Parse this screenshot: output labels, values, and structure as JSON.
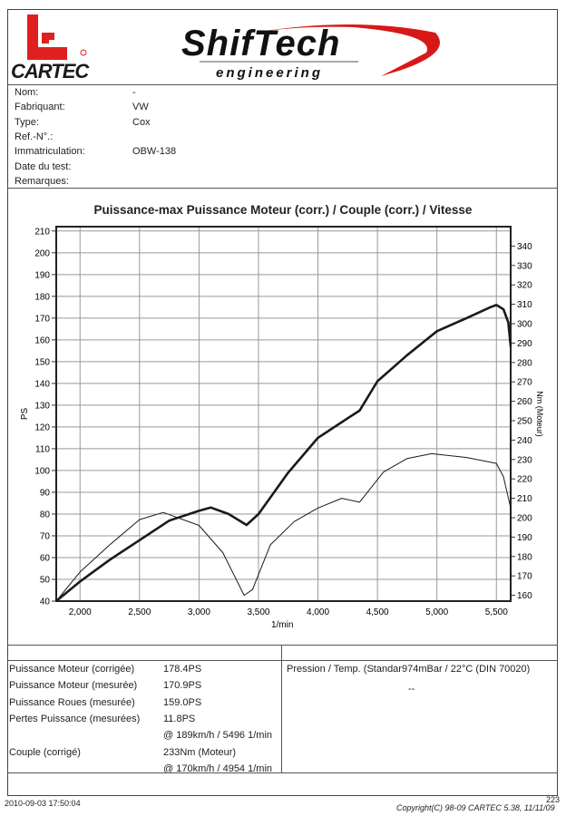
{
  "logos": {
    "cartec": "CARTEC",
    "shiftech": "ShifTech",
    "shiftech_sub": "engineering"
  },
  "info": [
    {
      "label": "Nom:",
      "value": "-"
    },
    {
      "label": "Fabriquant:",
      "value": "VW"
    },
    {
      "label": "Type:",
      "value": "Cox"
    },
    {
      "label": "Ref.-N°.:",
      "value": ""
    },
    {
      "label": "Immatriculation:",
      "value": "OBW-138"
    },
    {
      "label": "Date du test:",
      "value": ""
    },
    {
      "label": "Remarques:",
      "value": ""
    }
  ],
  "results": [
    {
      "label": "Puissance Moteur (corrigée)",
      "value": "178.4PS"
    },
    {
      "label": "Puissance Moteur (mesurée)",
      "value": "170.9PS"
    },
    {
      "label": "Puissance Roues (mesurée)",
      "value": "159.0PS"
    },
    {
      "label": "Pertes Puissance (mesurées)",
      "value": "11.8PS"
    },
    {
      "label": "",
      "value": "@ 189km/h / 5496 1/min"
    },
    {
      "label": "Couple (corrigé)",
      "value": "233Nm (Moteur)"
    },
    {
      "label": "",
      "value": "@ 170km/h / 4954 1/min"
    }
  ],
  "conditions": {
    "text": "Pression / Temp. (Standar974mBar / 22°C   (DIN 70020)",
    "sub": "--"
  },
  "footer": {
    "timestamp": "2010-09-03 17:50:04",
    "copyright": "Copyright(C) 98-09 CARTEC 5.38, 11/11/09",
    "corner": "223"
  },
  "colors": {
    "logo_red": "#e02020"
  },
  "chart_data": {
    "type": "line",
    "title": "Puissance-max Puissance Moteur (corr.) / Couple (corr.) / Vitesse",
    "xlabel": "1/min",
    "ylabel": "PS",
    "y2label": "Nm (Moteur)",
    "xlim": [
      1800,
      5620
    ],
    "ylim": [
      40,
      212
    ],
    "y2lim": [
      157,
      350
    ],
    "xticks": [
      2000,
      2500,
      3000,
      3500,
      4000,
      4500,
      5000,
      5500
    ],
    "xtick_labels": [
      "2,000",
      "2,500",
      "3,000",
      "3,500",
      "4,000",
      "4,500",
      "5,000",
      "5,500"
    ],
    "yticks": [
      40,
      50,
      60,
      70,
      80,
      90,
      100,
      110,
      120,
      130,
      140,
      150,
      160,
      170,
      180,
      190,
      200,
      210
    ],
    "y2ticks": [
      160,
      170,
      180,
      190,
      200,
      210,
      220,
      230,
      240,
      250,
      260,
      270,
      280,
      290,
      300,
      310,
      320,
      330,
      340
    ],
    "grid": true,
    "series": [
      {
        "name": "Puissance Moteur (corr.)",
        "axis": "left",
        "unit": "PS",
        "x": [
          1800,
          2000,
          2250,
          2500,
          2750,
          3000,
          3100,
          3250,
          3400,
          3500,
          3750,
          4000,
          4250,
          4350,
          4500,
          4750,
          5000,
          5250,
          5450,
          5500,
          5560,
          5600,
          5620
        ],
        "y": [
          40,
          49,
          59,
          68,
          77,
          81.5,
          83,
          80,
          75,
          80,
          99,
          115,
          124,
          127.5,
          141,
          153,
          164,
          170,
          175,
          176,
          174,
          168,
          157
        ]
      },
      {
        "name": "Couple (corr.)",
        "axis": "right",
        "unit": "Nm",
        "x": [
          1800,
          2000,
          2250,
          2500,
          2700,
          3000,
          3200,
          3380,
          3450,
          3600,
          3800,
          4000,
          4200,
          4350,
          4550,
          4750,
          4954,
          5250,
          5500,
          5560,
          5620
        ],
        "y": [
          157,
          172,
          186,
          199,
          202.7,
          196,
          182,
          160,
          163,
          186,
          198,
          205,
          210,
          208,
          223.5,
          230.5,
          233,
          231,
          228,
          221,
          205
        ]
      }
    ]
  }
}
